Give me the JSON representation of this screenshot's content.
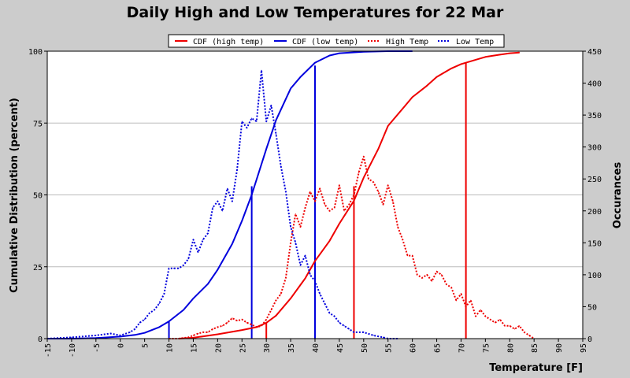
{
  "chart_data": {
    "type": "line",
    "title": "Daily High and Low Temperatures for 22 Mar",
    "xlabel": "Temperature [F]",
    "ylabel_left": "Cumulative Distribution (percent)",
    "ylabel_right": "Occurances",
    "xlim": [
      -15,
      95
    ],
    "ylim_left": [
      0,
      100
    ],
    "ylim_right": [
      0,
      450
    ],
    "x_ticks": [
      -15,
      -10,
      -5,
      0,
      5,
      10,
      15,
      20,
      25,
      30,
      35,
      40,
      45,
      50,
      55,
      60,
      65,
      70,
      75,
      80,
      85,
      90,
      95
    ],
    "y_left_ticks": [
      0,
      25,
      50,
      75,
      100
    ],
    "y_right_ticks": [
      0,
      50,
      100,
      150,
      200,
      250,
      300,
      350,
      400,
      450
    ],
    "grid": "horizontal",
    "legend_position": "top",
    "legend": [
      "CDF (high temp)",
      "CDF (low temp)",
      "High Temp",
      "Low Temp"
    ],
    "colors": {
      "high": "#ee0000",
      "low": "#0000dd"
    },
    "series": [
      {
        "name": "CDF (high temp)",
        "axis": "left",
        "style": "solid",
        "color": "#ee0000",
        "x": [
          12,
          15,
          20,
          25,
          28,
          30,
          32,
          35,
          38,
          40,
          43,
          45,
          48,
          50,
          53,
          55,
          58,
          60,
          63,
          65,
          68,
          70,
          73,
          75,
          78,
          80,
          82
        ],
        "y": [
          0,
          0.3,
          1.5,
          3,
          4,
          5.5,
          8,
          14,
          21,
          27,
          34,
          40,
          48,
          56,
          66,
          74,
          80,
          84,
          88,
          91,
          94,
          95.5,
          97,
          98,
          98.8,
          99.3,
          99.5
        ]
      },
      {
        "name": "CDF (low temp)",
        "axis": "left",
        "style": "solid",
        "color": "#0000dd",
        "x": [
          -15,
          -10,
          -5,
          0,
          3,
          5,
          8,
          10,
          13,
          15,
          18,
          20,
          23,
          25,
          27,
          30,
          32,
          35,
          37,
          40,
          43,
          45,
          50,
          55,
          60
        ],
        "y": [
          0,
          0,
          0.2,
          0.7,
          1.3,
          2,
          4,
          6,
          10,
          14,
          19,
          24,
          33,
          41,
          50,
          66,
          76,
          87,
          91,
          96,
          98.5,
          99.3,
          99.8,
          100,
          100
        ]
      },
      {
        "name": "High Temp",
        "axis": "right",
        "style": "dotted",
        "color": "#ee0000",
        "x": [
          10,
          12,
          14,
          15,
          16,
          17,
          18,
          19,
          20,
          21,
          22,
          23,
          24,
          25,
          26,
          27,
          28,
          29,
          30,
          31,
          32,
          33,
          34,
          35,
          36,
          37,
          38,
          39,
          40,
          41,
          42,
          43,
          44,
          45,
          46,
          47,
          48,
          49,
          50,
          51,
          52,
          53,
          54,
          55,
          56,
          57,
          58,
          59,
          60,
          61,
          62,
          63,
          64,
          65,
          66,
          67,
          68,
          69,
          70,
          71,
          72,
          73,
          74,
          75,
          76,
          77,
          78,
          79,
          80,
          81,
          82,
          83,
          84,
          85
        ],
        "y": [
          0,
          0,
          2,
          5,
          8,
          10,
          10,
          15,
          18,
          20,
          25,
          32,
          28,
          30,
          25,
          22,
          18,
          20,
          30,
          45,
          60,
          70,
          95,
          150,
          195,
          175,
          205,
          230,
          215,
          235,
          210,
          200,
          205,
          240,
          200,
          210,
          225,
          260,
          285,
          250,
          245,
          230,
          210,
          240,
          215,
          175,
          155,
          130,
          130,
          100,
          95,
          100,
          90,
          105,
          100,
          85,
          80,
          60,
          70,
          50,
          60,
          35,
          45,
          35,
          30,
          25,
          30,
          20,
          20,
          15,
          20,
          10,
          5,
          0
        ]
      },
      {
        "name": "Low Temp",
        "axis": "right",
        "style": "dotted",
        "color": "#0000dd",
        "x": [
          -15,
          -10,
          -5,
          -2,
          0,
          2,
          3,
          4,
          5,
          6,
          7,
          8,
          9,
          10,
          11,
          12,
          13,
          14,
          15,
          16,
          17,
          18,
          19,
          20,
          21,
          22,
          23,
          24,
          25,
          26,
          27,
          28,
          29,
          30,
          31,
          32,
          33,
          34,
          35,
          36,
          37,
          38,
          39,
          40,
          41,
          42,
          43,
          44,
          45,
          46,
          47,
          48,
          50,
          52,
          54,
          55,
          57
        ],
        "y": [
          0,
          2,
          5,
          8,
          5,
          10,
          15,
          25,
          30,
          40,
          45,
          55,
          70,
          110,
          110,
          110,
          115,
          125,
          155,
          135,
          155,
          165,
          205,
          215,
          200,
          235,
          215,
          265,
          340,
          330,
          345,
          340,
          420,
          340,
          365,
          320,
          270,
          230,
          175,
          150,
          115,
          130,
          100,
          90,
          70,
          55,
          40,
          35,
          25,
          20,
          15,
          10,
          10,
          5,
          2,
          0,
          0
        ]
      }
    ],
    "vertical_markers": [
      {
        "x": 10,
        "y": 6,
        "color": "#0000dd"
      },
      {
        "x": 27,
        "y": 53,
        "color": "#0000dd"
      },
      {
        "x": 40,
        "y": 95,
        "color": "#0000dd"
      },
      {
        "x": 30,
        "y": 5.5,
        "color": "#ee0000"
      },
      {
        "x": 48,
        "y": 53,
        "color": "#ee0000"
      },
      {
        "x": 71,
        "y": 96,
        "color": "#ee0000"
      }
    ]
  }
}
